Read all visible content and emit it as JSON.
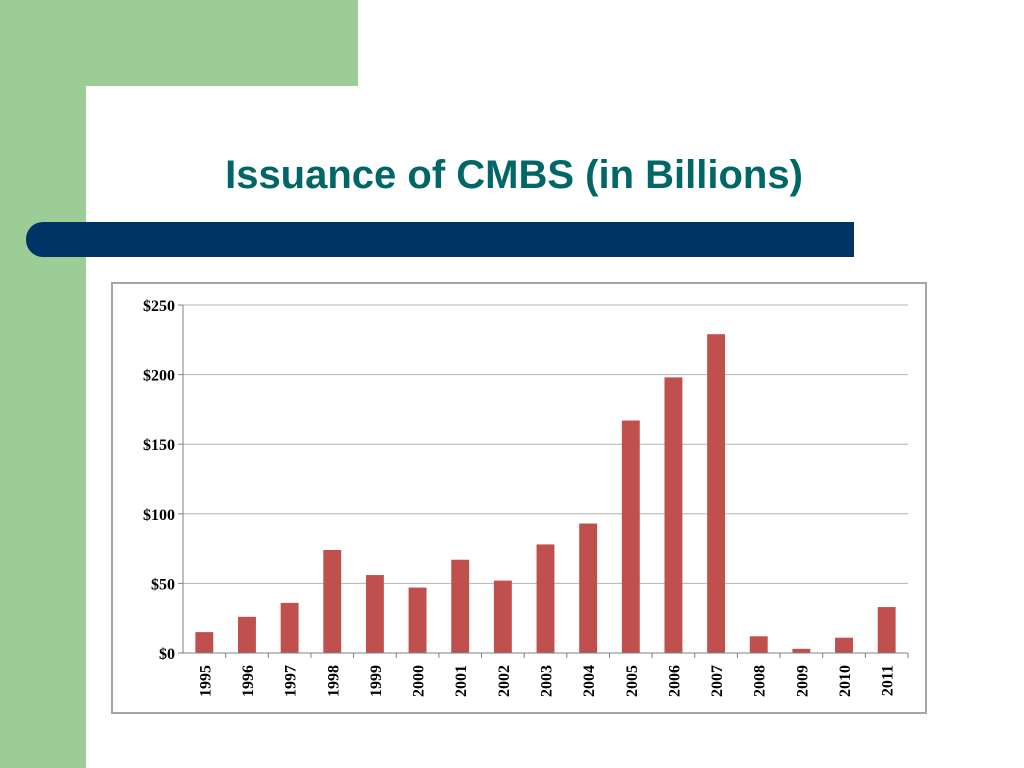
{
  "slide": {
    "title": "Issuance of CMBS (in Billions)",
    "colors": {
      "green": "#9ccd96",
      "navy": "#003366",
      "title": "#006666",
      "bar": "#c0504d",
      "grid": "#b4b4b4"
    }
  },
  "chart_data": {
    "type": "bar",
    "title": "",
    "xlabel": "",
    "ylabel": "",
    "categories": [
      "1995",
      "1996",
      "1997",
      "1998",
      "1999",
      "2000",
      "2001",
      "2002",
      "2003",
      "2004",
      "2005",
      "2006",
      "2007",
      "2008",
      "2009",
      "2010",
      "2011"
    ],
    "values": [
      15,
      26,
      36,
      74,
      56,
      47,
      67,
      52,
      78,
      93,
      167,
      198,
      229,
      12,
      3,
      11,
      33
    ],
    "ylim": [
      0,
      250
    ],
    "yticks": [
      0,
      50,
      100,
      150,
      200,
      250
    ],
    "ytick_labels": [
      "$0",
      "$50",
      "$100",
      "$150",
      "$200",
      "$250"
    ],
    "grid": true,
    "legend": "none"
  }
}
